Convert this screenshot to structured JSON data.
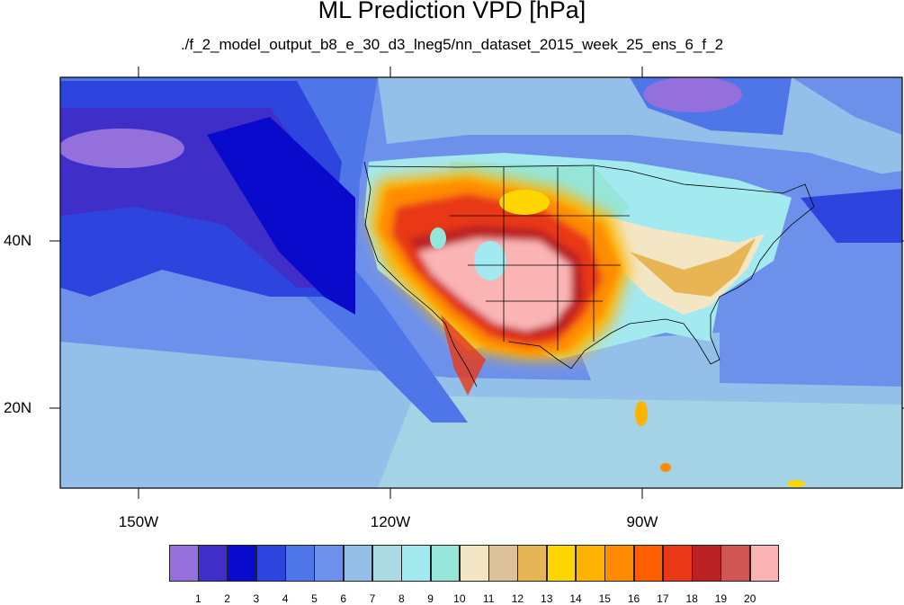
{
  "title": "ML Prediction VPD [hPa]",
  "subtitle": "./f_2_model_output_b8_e_30_d3_lneg5/nn_dataset_2015_week_25_ens_6_f_2",
  "map": {
    "projection": "cylindrical-equidistant",
    "lon_range": [
      -165,
      -67
    ],
    "lat_range": [
      11,
      60
    ],
    "lon_labels": [
      "150W",
      "120W",
      "90W"
    ],
    "lat_labels": [
      "40N",
      "20N"
    ],
    "lon_ticks": [
      -150,
      -120,
      -90
    ],
    "lat_ticks": [
      40,
      20
    ]
  },
  "colorbar": {
    "labels": [
      "1",
      "2",
      "3",
      "4",
      "5",
      "6",
      "7",
      "8",
      "9",
      "10",
      "11",
      "12",
      "13",
      "14",
      "15",
      "16",
      "17",
      "18",
      "19",
      "20"
    ],
    "colors": [
      "#9370DB",
      "#3F2FC8",
      "#0A0ACC",
      "#2E44DE",
      "#4F76E8",
      "#6D91EB",
      "#93BFE8",
      "#AADBE3",
      "#A3E9F0",
      "#95E6D9",
      "#F2E6C4",
      "#DCC19A",
      "#E8B555",
      "#FFD600",
      "#FFB300",
      "#FF8C00",
      "#FF5E00",
      "#E83818",
      "#BB2224",
      "#D05555",
      "#FAB4B4"
    ]
  }
}
